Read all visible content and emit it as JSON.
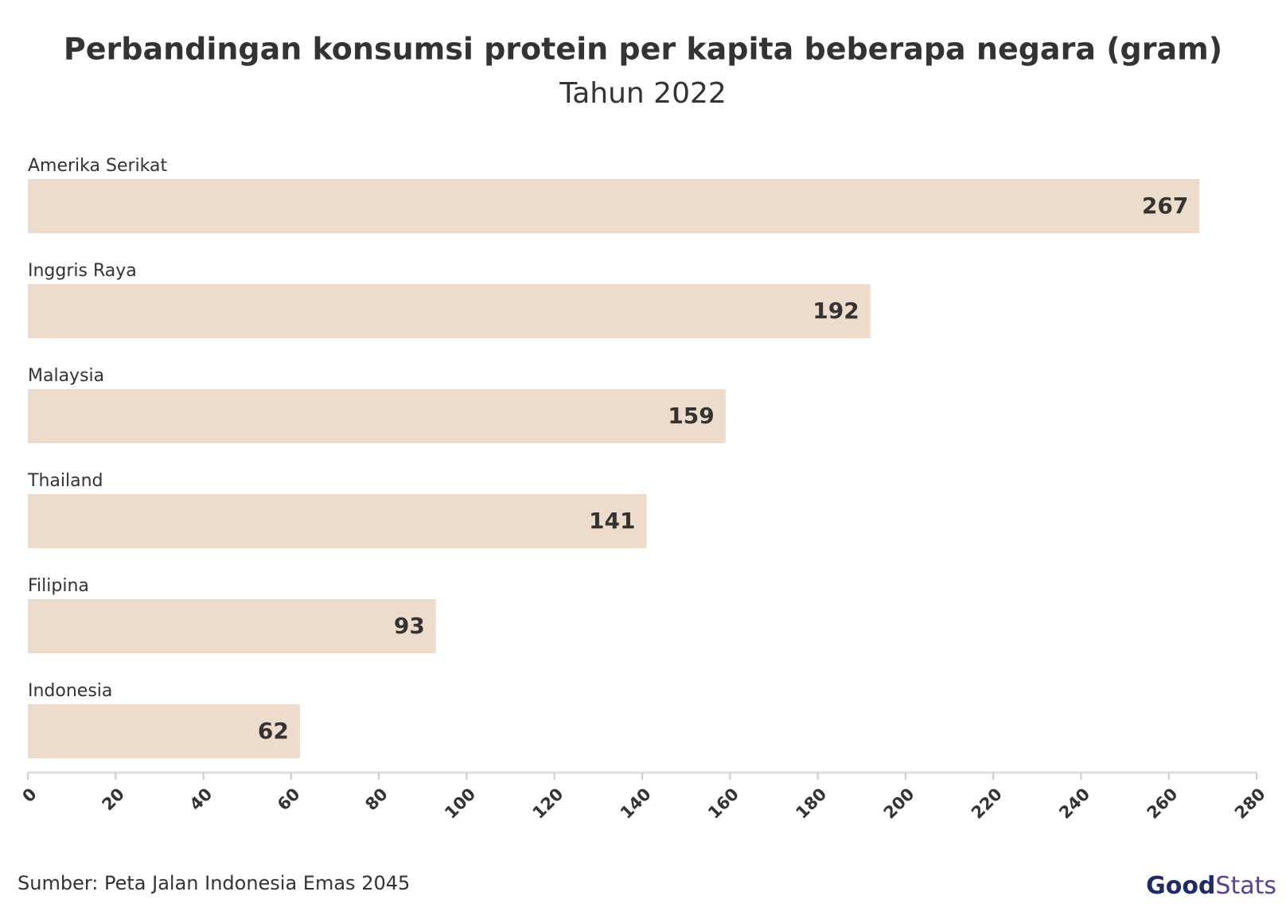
{
  "chart_data": {
    "type": "hbar",
    "title": "Perbandingan konsumsi protein per kapita beberapa negara (gram)",
    "subtitle": "Tahun 2022",
    "categories": [
      "Amerika Serikat",
      "Inggris Raya",
      "Malaysia",
      "Thailand",
      "Filipina",
      "Indonesia"
    ],
    "values": [
      267,
      192,
      159,
      141,
      93,
      62
    ],
    "color": "#eddccb",
    "xlim": [
      0,
      280
    ],
    "xticks": [
      0,
      20,
      40,
      60,
      80,
      100,
      120,
      140,
      160,
      180,
      200,
      220,
      240,
      260,
      280
    ],
    "source": "Sumber: Peta Jalan Indonesia Emas 2045"
  },
  "logo": {
    "first": "Good",
    "second": "Stats"
  }
}
